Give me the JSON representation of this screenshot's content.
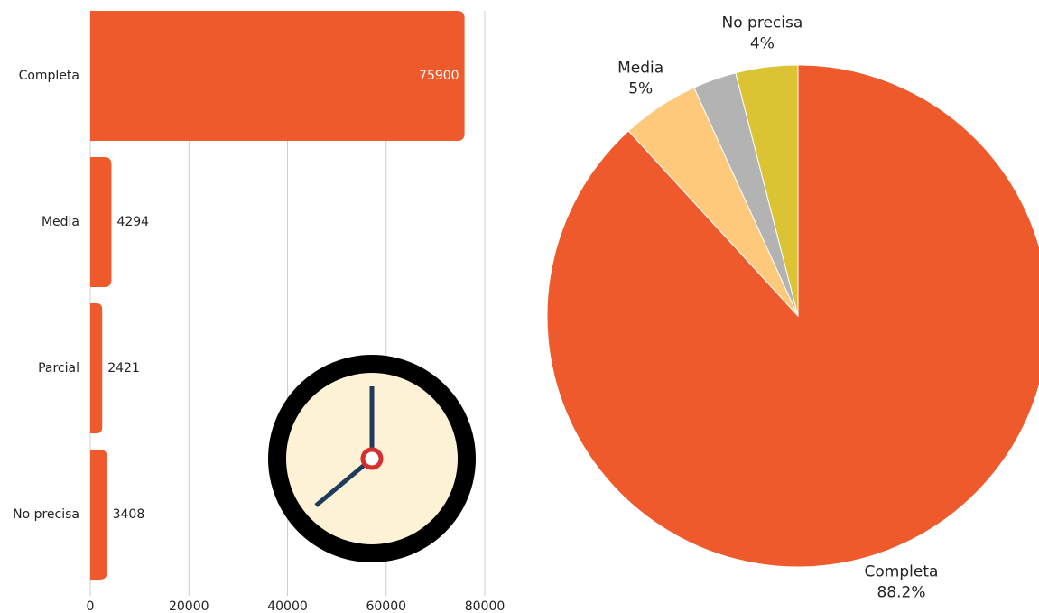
{
  "chart_data": [
    {
      "type": "bar",
      "orientation": "horizontal",
      "categories": [
        "Completa",
        "Media",
        "Parcial",
        "No precisa"
      ],
      "values": [
        75900,
        4294,
        2421,
        3408
      ],
      "color": "#ee5a2c",
      "xlim": [
        0,
        80000
      ],
      "xticks": [
        0,
        20000,
        40000,
        60000,
        80000
      ],
      "grid": true
    },
    {
      "type": "pie",
      "categories": [
        "Completa",
        "Media",
        null,
        "No precisa"
      ],
      "values": [
        88.2,
        5,
        2.8,
        4
      ],
      "value_labels": [
        "88.2%",
        "5%",
        null,
        "4%"
      ],
      "colors": [
        "#ee5a2c",
        "#fec97a",
        "#b3b3b3",
        "#dbc333"
      ]
    }
  ]
}
